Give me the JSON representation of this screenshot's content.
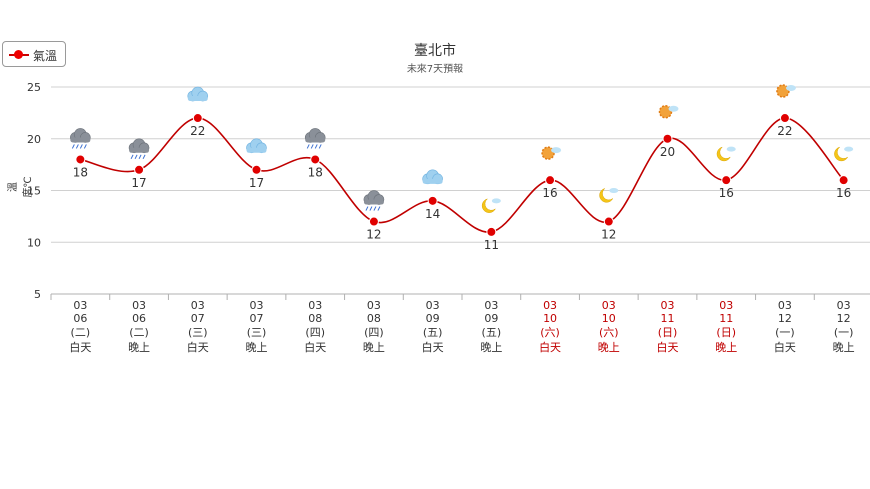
{
  "legend": {
    "label": "氣溫"
  },
  "chart_data": {
    "type": "line",
    "title": "臺北市",
    "subtitle": "未來7天預報",
    "ylabel": "溫度℃",
    "ylim": [
      5,
      25
    ],
    "yticks": [
      5,
      10,
      15,
      20,
      25
    ],
    "grid": true,
    "legend_position": "top-left",
    "colors": {
      "line": "#c00000",
      "marker": "#e00000",
      "weekend_label": "#c00000",
      "label": "#333333",
      "grid": "#d0d0d0"
    },
    "categories": [
      {
        "month": "03",
        "day": "06",
        "weekday": "(二)",
        "period": "白天",
        "weekend": false,
        "icon": "rain-cloud-icon"
      },
      {
        "month": "03",
        "day": "06",
        "weekday": "(二)",
        "period": "晚上",
        "weekend": false,
        "icon": "rain-cloud-icon"
      },
      {
        "month": "03",
        "day": "07",
        "weekday": "(三)",
        "period": "白天",
        "weekend": false,
        "icon": "cloud-icon"
      },
      {
        "month": "03",
        "day": "07",
        "weekday": "(三)",
        "period": "晚上",
        "weekend": false,
        "icon": "cloud-icon"
      },
      {
        "month": "03",
        "day": "08",
        "weekday": "(四)",
        "period": "白天",
        "weekend": false,
        "icon": "rain-cloud-icon"
      },
      {
        "month": "03",
        "day": "08",
        "weekday": "(四)",
        "period": "晚上",
        "weekend": false,
        "icon": "rain-cloud-icon"
      },
      {
        "month": "03",
        "day": "09",
        "weekday": "(五)",
        "period": "白天",
        "weekend": false,
        "icon": "cloud-icon"
      },
      {
        "month": "03",
        "day": "09",
        "weekday": "(五)",
        "period": "晚上",
        "weekend": false,
        "icon": "moon-cloud-icon"
      },
      {
        "month": "03",
        "day": "10",
        "weekday": "(六)",
        "period": "白天",
        "weekend": true,
        "icon": "sun-cloud-icon"
      },
      {
        "month": "03",
        "day": "10",
        "weekday": "(六)",
        "period": "晚上",
        "weekend": true,
        "icon": "moon-cloud-icon"
      },
      {
        "month": "03",
        "day": "11",
        "weekday": "(日)",
        "period": "白天",
        "weekend": true,
        "icon": "sun-cloud-icon"
      },
      {
        "month": "03",
        "day": "11",
        "weekday": "(日)",
        "period": "晚上",
        "weekend": true,
        "icon": "moon-cloud-icon"
      },
      {
        "month": "03",
        "day": "12",
        "weekday": "(一)",
        "period": "白天",
        "weekend": false,
        "icon": "sun-cloud-icon"
      },
      {
        "month": "03",
        "day": "12",
        "weekday": "(一)",
        "period": "晚上",
        "weekend": false,
        "icon": "moon-cloud-icon"
      }
    ],
    "series": [
      {
        "name": "氣溫",
        "values": [
          18,
          17,
          22,
          17,
          18,
          12,
          14,
          11,
          16,
          12,
          20,
          16,
          22,
          16
        ]
      }
    ]
  }
}
